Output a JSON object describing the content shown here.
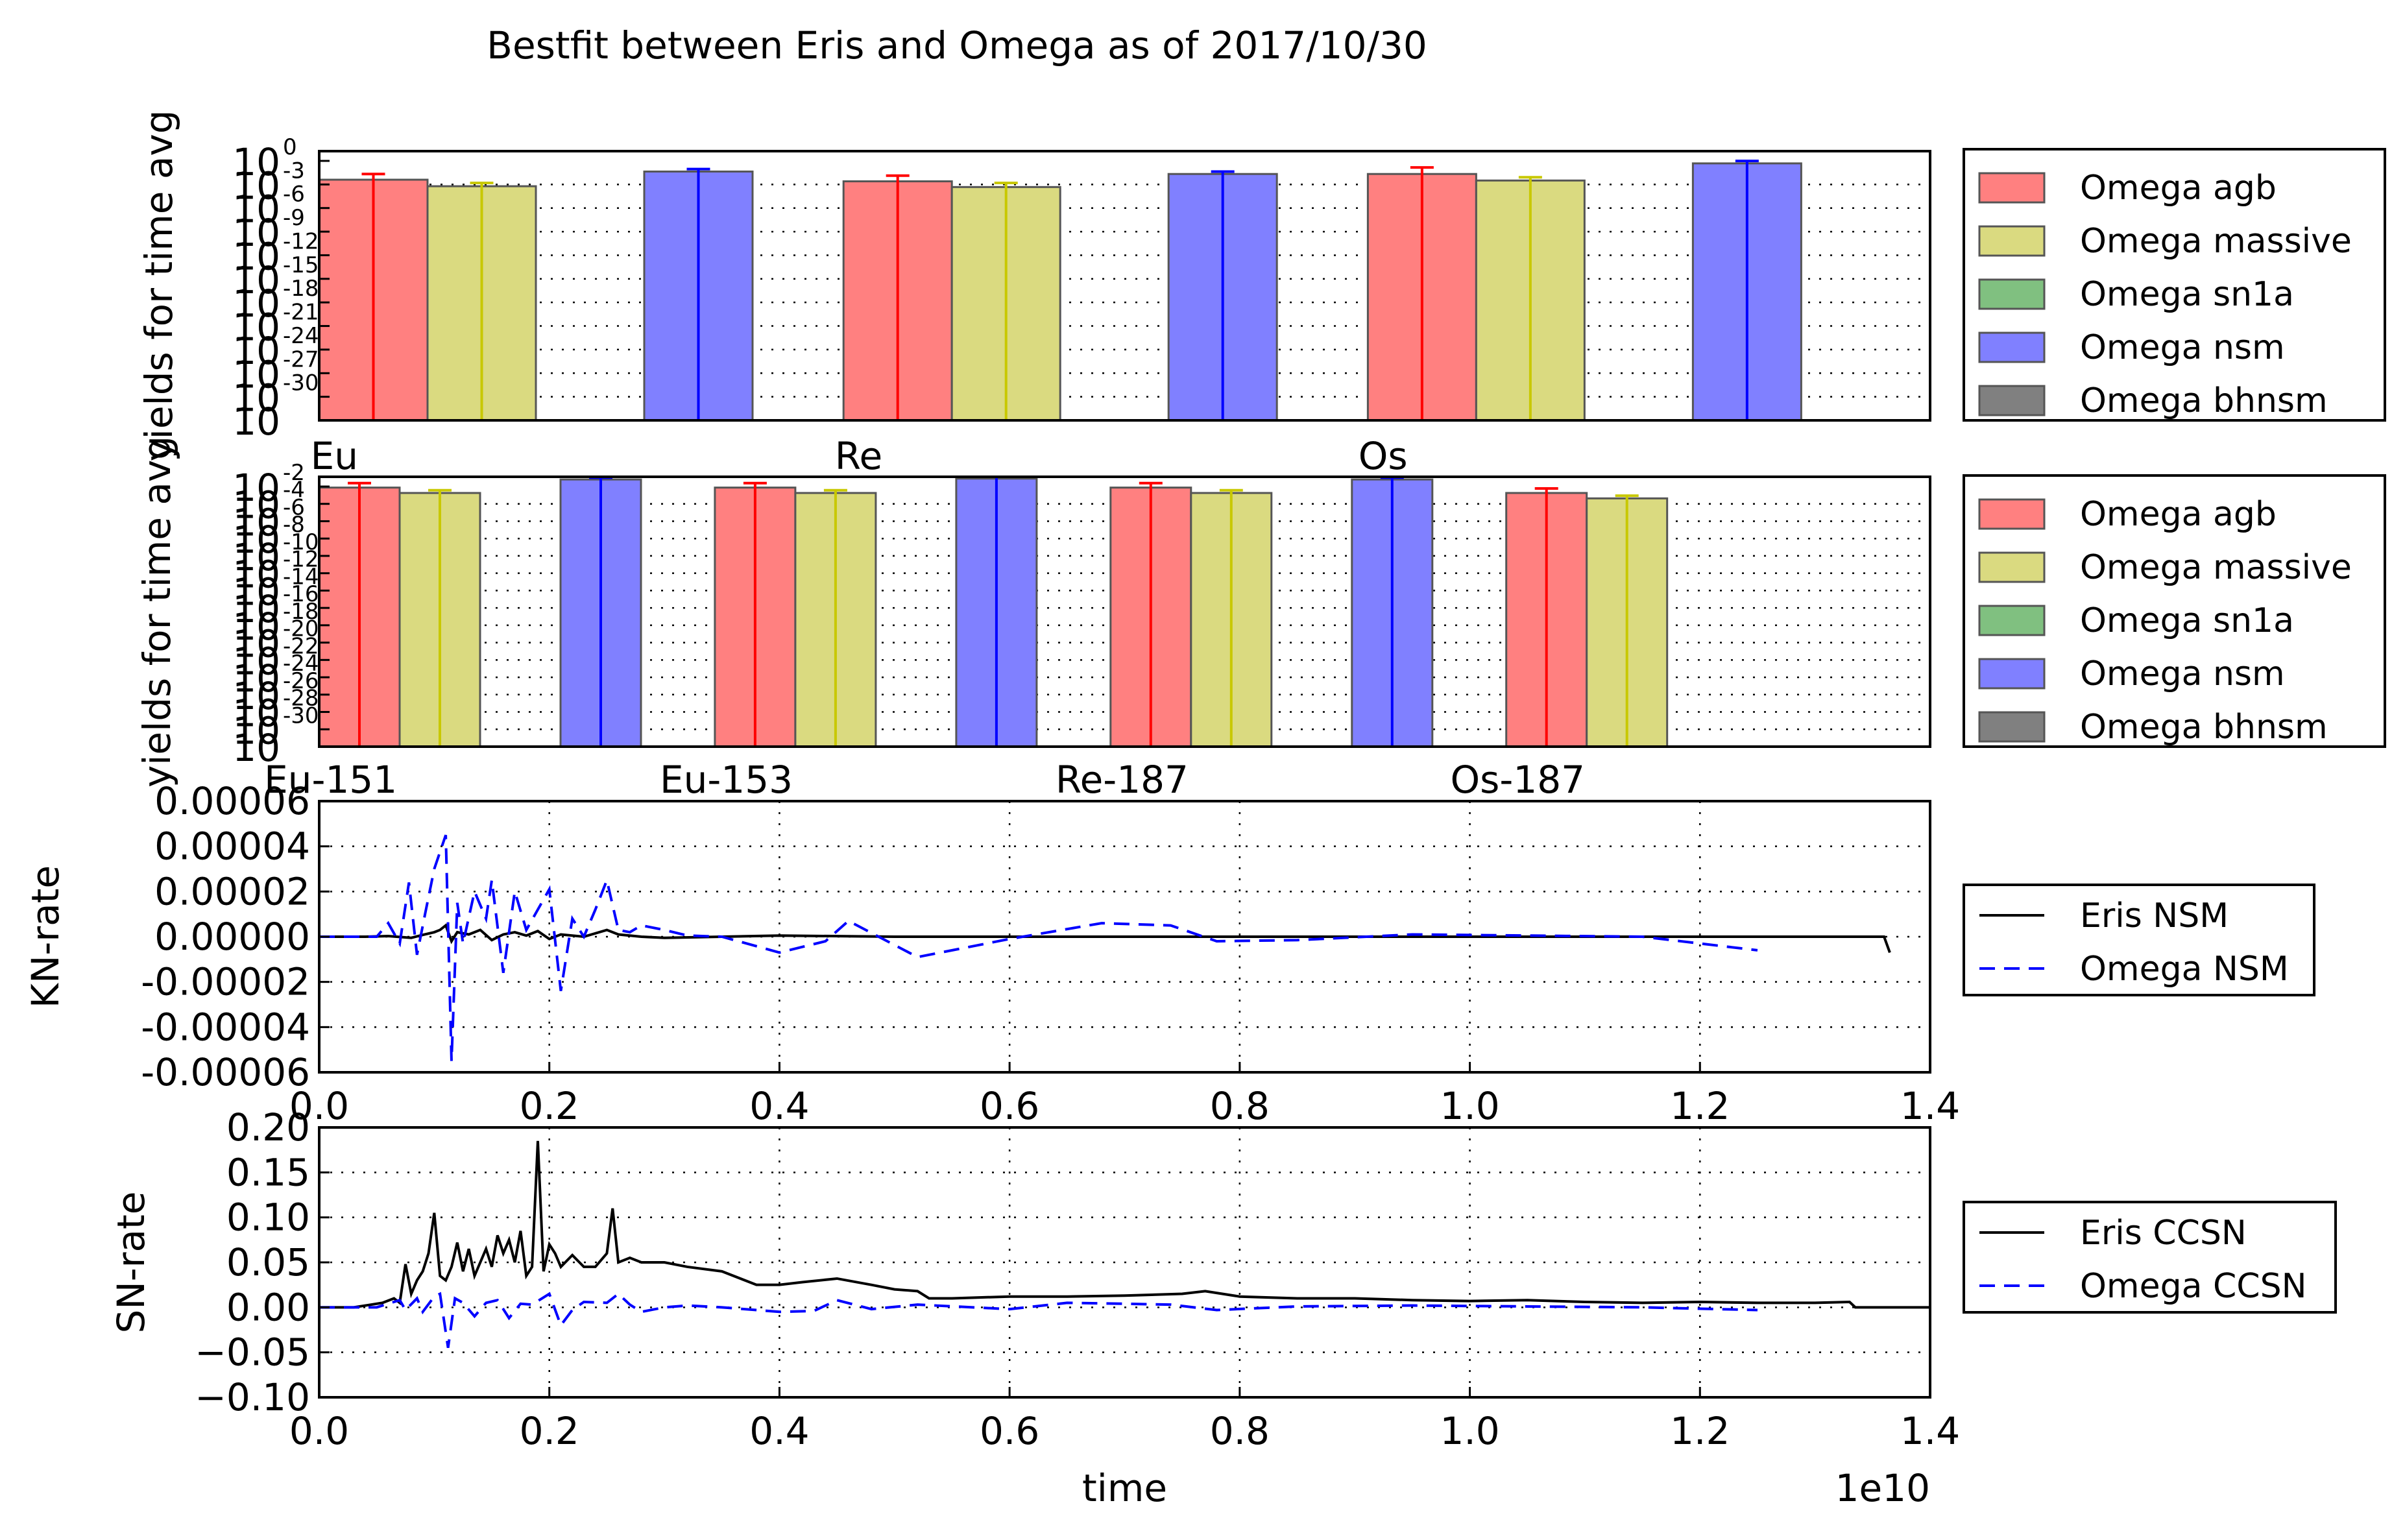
{
  "title": "Bestfit between Eris and Omega as of 2017/10/30",
  "colors": {
    "agb": "#ff8080",
    "massive": "#dada80",
    "sn1a": "#80c080",
    "nsm": "#8080ff",
    "bhnsm": "#808080",
    "agb_err": "#ff0000",
    "massive_err": "#c8c800",
    "nsm_err": "#0000ff",
    "eris_line": "#000000",
    "omega_line": "#0000ff"
  },
  "chart_data": [
    {
      "id": "elements",
      "type": "bar",
      "ylabel": "yields for time avg",
      "yscale": "log",
      "ylim_exp": [
        -32,
        1
      ],
      "yticks": [
        {
          "base": "10",
          "exp": "0"
        },
        {
          "base": "10",
          "exp": "-3"
        },
        {
          "base": "10",
          "exp": "-6"
        },
        {
          "base": "10",
          "exp": "-9"
        },
        {
          "base": "10",
          "exp": "-12"
        },
        {
          "base": "10",
          "exp": "-15"
        },
        {
          "base": "10",
          "exp": "-18"
        },
        {
          "base": "10",
          "exp": "-21"
        },
        {
          "base": "10",
          "exp": "-24"
        },
        {
          "base": "10",
          "exp": "-27"
        },
        {
          "base": "10",
          "exp": "-30"
        },
        {
          "base": "10",
          "exp": ""
        }
      ],
      "categories": [
        "Eu",
        "Re",
        "Os"
      ],
      "series": [
        {
          "name": "Omega agb",
          "key": "agb",
          "log10": [
            -2.5,
            -2.7,
            -1.8
          ],
          "err_log10": [
            0.7,
            0.7,
            0.8
          ]
        },
        {
          "name": "Omega massive",
          "key": "massive",
          "log10": [
            -3.3,
            -3.4,
            -2.6
          ],
          "err_log10": [
            0.4,
            0.5,
            0.4
          ]
        },
        {
          "name": "Omega sn1a",
          "key": "sn1a",
          "log10": [
            null,
            null,
            null
          ],
          "err_log10": [
            0,
            0,
            0
          ]
        },
        {
          "name": "Omega nsm",
          "key": "nsm",
          "log10": [
            -1.5,
            -1.8,
            -0.5
          ],
          "err_log10": [
            0.3,
            0.3,
            0.3
          ]
        },
        {
          "name": "Omega bhnsm",
          "key": "bhnsm",
          "log10": [
            null,
            null,
            null
          ],
          "err_log10": [
            0,
            0,
            0
          ]
        }
      ]
    },
    {
      "id": "isotopes",
      "type": "bar",
      "ylabel": "yields for time avg",
      "yscale": "log",
      "ylim_exp": [
        -32,
        -2
      ],
      "yticks": [
        {
          "base": "10",
          "exp": "-2"
        },
        {
          "base": "10",
          "exp": "-4"
        },
        {
          "base": "10",
          "exp": "-6"
        },
        {
          "base": "10",
          "exp": "-8"
        },
        {
          "base": "10",
          "exp": "-10"
        },
        {
          "base": "10",
          "exp": "-12"
        },
        {
          "base": "10",
          "exp": "-14"
        },
        {
          "base": "10",
          "exp": "-16"
        },
        {
          "base": "10",
          "exp": "-18"
        },
        {
          "base": "10",
          "exp": "-20"
        },
        {
          "base": "10",
          "exp": "-22"
        },
        {
          "base": "10",
          "exp": "-24"
        },
        {
          "base": "10",
          "exp": "-26"
        },
        {
          "base": "10",
          "exp": "-28"
        },
        {
          "base": "10",
          "exp": "-30"
        },
        {
          "base": "10",
          "exp": ""
        }
      ],
      "categories": [
        "Eu-151",
        "Eu-153",
        "Re-187",
        "Os-187"
      ],
      "series": [
        {
          "name": "Omega agb",
          "key": "agb",
          "log10": [
            -3.2,
            -3.2,
            -3.2,
            -3.8
          ],
          "err_log10": [
            0.5,
            0.5,
            0.5,
            0.5
          ]
        },
        {
          "name": "Omega massive",
          "key": "massive",
          "log10": [
            -3.8,
            -3.8,
            -3.8,
            -4.4
          ],
          "err_log10": [
            0.3,
            0.3,
            0.3,
            0.3
          ]
        },
        {
          "name": "Omega sn1a",
          "key": "sn1a",
          "log10": [
            null,
            null,
            null,
            null
          ],
          "err_log10": [
            0,
            0,
            0,
            0
          ]
        },
        {
          "name": "Omega nsm",
          "key": "nsm",
          "log10": [
            -2.3,
            -2.2,
            -2.3,
            null
          ],
          "err_log10": [
            0.2,
            0.2,
            0.2,
            0
          ]
        },
        {
          "name": "Omega bhnsm",
          "key": "bhnsm",
          "log10": [
            null,
            null,
            null,
            null
          ],
          "err_log10": [
            0,
            0,
            0,
            0
          ]
        }
      ]
    },
    {
      "id": "kn-rate",
      "type": "line",
      "ylabel": "KN-rate",
      "xlim": [
        0,
        14000000000
      ],
      "ylim": [
        -6e-05,
        6e-05
      ],
      "xticks": [
        "0.0",
        "0.2",
        "0.4",
        "0.6",
        "0.8",
        "1.0",
        "1.2",
        "1.4"
      ],
      "yticks": [
        "0.00006",
        "0.00004",
        "0.00002",
        "0.00000",
        "-0.00002",
        "-0.00004",
        "-0.00006"
      ],
      "series": [
        {
          "name": "Eris NSM",
          "style": "solid",
          "x": [
            0,
            0.4,
            0.6,
            0.8,
            0.9,
            1.0,
            1.05,
            1.1,
            1.15,
            1.2,
            1.3,
            1.4,
            1.5,
            1.6,
            1.7,
            1.8,
            1.9,
            2.0,
            2.1,
            2.3,
            2.5,
            2.6,
            2.8,
            3.0,
            3.5,
            4.0,
            5.0,
            6.0,
            7.0,
            8.0,
            9.0,
            10.0,
            11.0,
            12.0,
            13.0,
            13.5,
            13.6,
            13.65
          ],
          "y": [
            0,
            0,
            3e-07,
            -5e-07,
            8e-07,
            2e-06,
            3e-06,
            5e-06,
            -2e-06,
            2e-06,
            1e-06,
            3e-06,
            -1.5e-06,
            1e-06,
            2e-06,
            5e-07,
            2.5e-06,
            -1e-06,
            1e-06,
            0,
            3e-06,
            1e-06,
            0,
            -5e-07,
            0,
            5e-07,
            0,
            0,
            0,
            0,
            0,
            0,
            0,
            0,
            0,
            0,
            0,
            -7e-06
          ]
        },
        {
          "name": "Omega NSM",
          "style": "dashed",
          "x": [
            0,
            0.4,
            0.5,
            0.6,
            0.7,
            0.78,
            0.85,
            0.92,
            1.0,
            1.1,
            1.15,
            1.2,
            1.25,
            1.35,
            1.45,
            1.5,
            1.6,
            1.7,
            1.8,
            1.9,
            2.0,
            2.1,
            2.2,
            2.3,
            2.4,
            2.5,
            2.6,
            2.7,
            2.8,
            3.0,
            3.2,
            3.5,
            4.0,
            4.4,
            4.6,
            5.2,
            6.0,
            6.8,
            7.4,
            7.8,
            8.5,
            9.5,
            10.5,
            11.5,
            12.5
          ],
          "y": [
            0,
            0,
            0,
            6e-06,
            -3e-06,
            2.4e-05,
            -8e-06,
            1e-05,
            3e-05,
            4.5e-05,
            -5.5e-05,
            1.5e-05,
            -3e-06,
            2e-05,
            8e-06,
            2.5e-05,
            -1.6e-05,
            2e-05,
            3e-06,
            1.2e-05,
            2.1e-05,
            -2.4e-05,
            8e-06,
            0,
            1.2e-05,
            2.5e-05,
            3e-06,
            2e-06,
            5e-06,
            3e-06,
            5e-07,
            0,
            -7e-06,
            -2e-06,
            7e-06,
            -9e-06,
            -1e-06,
            6e-06,
            5e-06,
            -2e-06,
            -1.5e-06,
            1e-06,
            5e-07,
            0,
            -6e-06
          ]
        }
      ]
    },
    {
      "id": "sn-rate",
      "type": "line",
      "xlabel": "time",
      "x_offset_label": "1e10",
      "ylabel": "SN-rate",
      "xlim": [
        0,
        14000000000
      ],
      "ylim": [
        -0.1,
        0.2
      ],
      "xticks": [
        "0.0",
        "0.2",
        "0.4",
        "0.6",
        "0.8",
        "1.0",
        "1.2",
        "1.4"
      ],
      "yticks": [
        "0.20",
        "0.15",
        "0.10",
        "0.05",
        "0.00",
        "−0.05",
        "−0.10"
      ],
      "series": [
        {
          "name": "Eris CCSN",
          "style": "solid",
          "x": [
            0,
            0.3,
            0.45,
            0.55,
            0.65,
            0.7,
            0.75,
            0.8,
            0.85,
            0.9,
            0.95,
            1.0,
            1.05,
            1.1,
            1.15,
            1.2,
            1.25,
            1.3,
            1.35,
            1.4,
            1.45,
            1.5,
            1.55,
            1.6,
            1.65,
            1.7,
            1.75,
            1.8,
            1.85,
            1.9,
            1.95,
            2.0,
            2.05,
            2.1,
            2.2,
            2.3,
            2.4,
            2.5,
            2.55,
            2.6,
            2.7,
            2.8,
            3.0,
            3.2,
            3.5,
            3.8,
            4.0,
            4.2,
            4.5,
            4.8,
            5.0,
            5.2,
            5.3,
            5.5,
            6.0,
            6.5,
            7.0,
            7.5,
            7.7,
            8.0,
            8.5,
            9.0,
            9.5,
            10.0,
            10.5,
            11.0,
            11.5,
            12.0,
            12.5,
            13.0,
            13.3,
            13.35,
            14.0
          ],
          "y": [
            0,
            0,
            0.003,
            0.005,
            0.01,
            0.005,
            0.048,
            0.015,
            0.03,
            0.04,
            0.06,
            0.105,
            0.035,
            0.03,
            0.045,
            0.072,
            0.04,
            0.065,
            0.035,
            0.05,
            0.065,
            0.045,
            0.08,
            0.06,
            0.075,
            0.05,
            0.085,
            0.035,
            0.045,
            0.185,
            0.04,
            0.07,
            0.06,
            0.045,
            0.058,
            0.045,
            0.045,
            0.06,
            0.11,
            0.05,
            0.055,
            0.05,
            0.05,
            0.045,
            0.04,
            0.025,
            0.025,
            0.028,
            0.032,
            0.025,
            0.02,
            0.018,
            0.01,
            0.01,
            0.012,
            0.012,
            0.013,
            0.015,
            0.018,
            0.012,
            0.01,
            0.01,
            0.008,
            0.007,
            0.008,
            0.006,
            0.005,
            0.006,
            0.005,
            0.005,
            0.006,
            0,
            0
          ]
        },
        {
          "name": "Omega CCSN",
          "style": "dashed",
          "x": [
            0,
            0.4,
            0.5,
            0.6,
            0.7,
            0.75,
            0.85,
            0.9,
            1.0,
            1.05,
            1.12,
            1.18,
            1.25,
            1.35,
            1.45,
            1.55,
            1.65,
            1.75,
            1.85,
            2.0,
            2.1,
            2.2,
            2.3,
            2.5,
            2.6,
            2.7,
            2.8,
            3.0,
            3.2,
            3.5,
            4.0,
            4.3,
            4.5,
            4.8,
            5.2,
            6.0,
            6.5,
            7.0,
            7.4,
            7.8,
            8.5,
            9.5,
            10.5,
            11.5,
            12.5
          ],
          "y": [
            0,
            0,
            0,
            0.004,
            0.008,
            -0.003,
            0.01,
            -0.005,
            0.012,
            0.015,
            -0.045,
            0.01,
            0.005,
            -0.01,
            0.005,
            0.008,
            -0.012,
            0.004,
            0.003,
            0.015,
            -0.02,
            -0.003,
            0.006,
            0.005,
            0.015,
            0.003,
            -0.005,
            0,
            0.002,
            0,
            -0.005,
            -0.004,
            0.008,
            -0.002,
            0.003,
            -0.002,
            0.005,
            0.004,
            0.003,
            -0.003,
            0.001,
            0.002,
            0.001,
            0,
            -0.003
          ]
        }
      ]
    }
  ],
  "legends": {
    "bars": [
      "Omega agb",
      "Omega massive",
      "Omega sn1a",
      "Omega nsm",
      "Omega bhnsm"
    ],
    "kn": [
      "Eris NSM",
      "Omega NSM"
    ],
    "sn": [
      "Eris CCSN",
      "Omega CCSN"
    ]
  }
}
